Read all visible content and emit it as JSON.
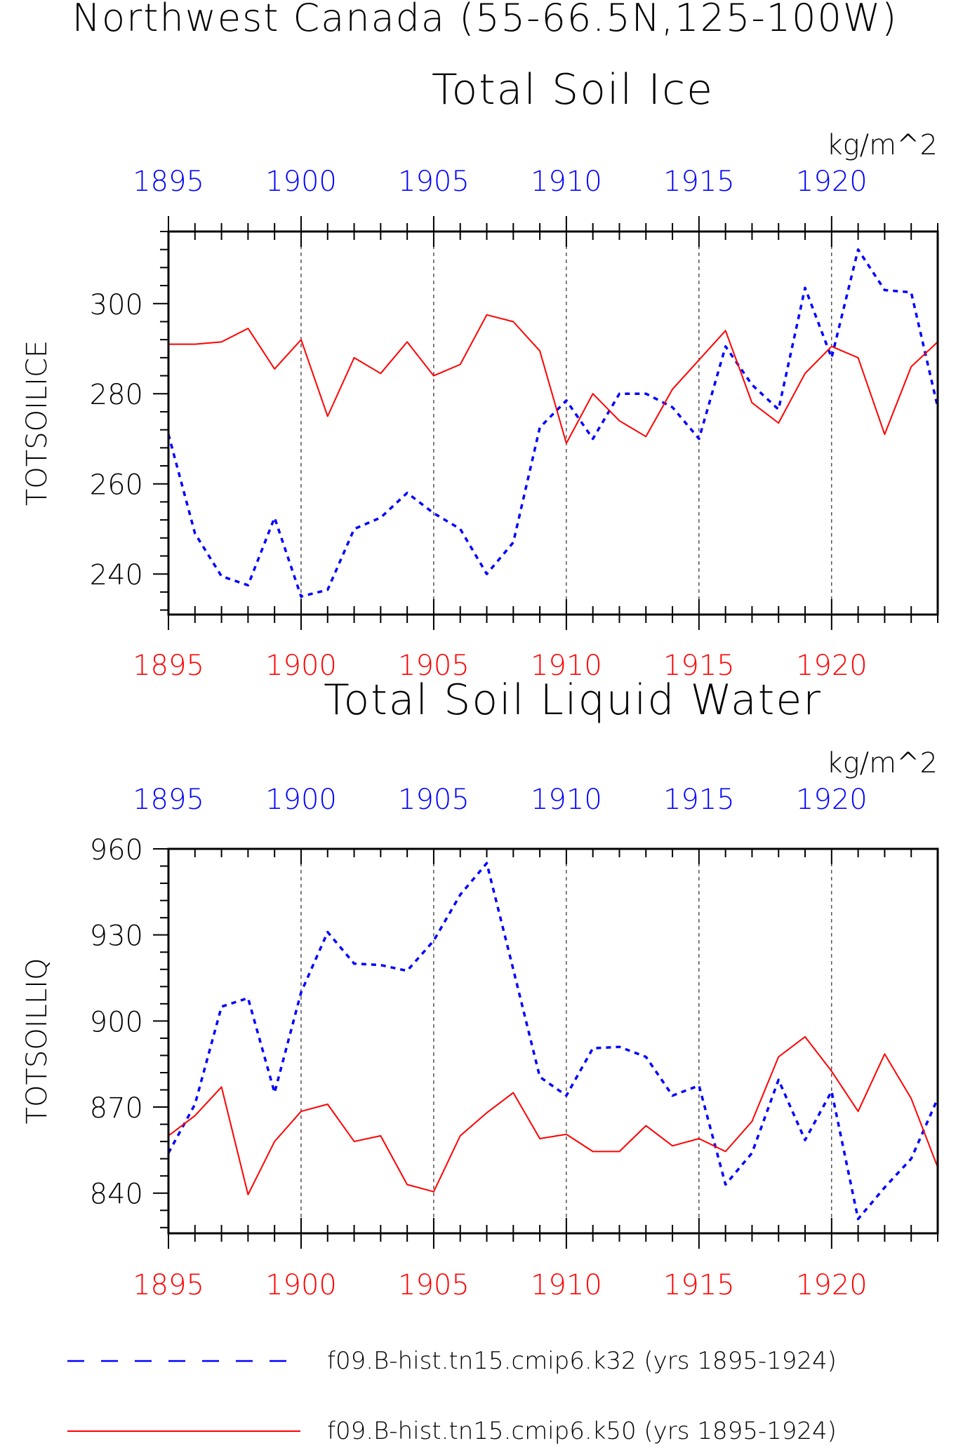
{
  "header": {
    "title": "Northwest Canada (55-66.5N,125-100W)"
  },
  "colors": {
    "k32": "#0000ff",
    "k50": "#ff0000",
    "axis": "#000000"
  },
  "chart_data": [
    {
      "type": "line",
      "title": "Total Soil Ice",
      "ylabel": "TOTSOILICE",
      "units": "kg/m^2",
      "xlim": [
        1895,
        1924
      ],
      "ylim": [
        231,
        316
      ],
      "yticks": [
        240,
        260,
        280,
        300
      ],
      "xticks": [
        1895,
        1900,
        1905,
        1910,
        1915,
        1920
      ],
      "x": [
        1895,
        1896,
        1897,
        1898,
        1899,
        1900,
        1901,
        1902,
        1903,
        1904,
        1905,
        1906,
        1907,
        1908,
        1909,
        1910,
        1911,
        1912,
        1913,
        1914,
        1915,
        1916,
        1917,
        1918,
        1919,
        1920,
        1921,
        1922,
        1923,
        1924
      ],
      "series": [
        {
          "name": "f09.B-hist.tn15.cmip6.k32 (yrs 1895-1924)",
          "style": "dashed",
          "color": "#0000ff",
          "values": [
            271,
            249,
            239.5,
            237.5,
            252.5,
            235,
            236.5,
            250,
            252.5,
            258,
            253.5,
            250,
            240,
            247,
            272.5,
            278.5,
            270,
            280,
            280,
            277,
            270,
            290.5,
            282,
            276.5,
            303.5,
            288,
            312,
            303,
            302.5,
            277
          ]
        },
        {
          "name": "f09.B-hist.tn15.cmip6.k50 (yrs 1895-1924)",
          "style": "solid",
          "color": "#ff0000",
          "values": [
            291,
            291,
            291.5,
            294.5,
            285.5,
            292,
            275,
            288,
            284.5,
            291.5,
            284,
            286.5,
            297.5,
            296,
            289.5,
            269,
            280,
            274,
            270.5,
            281,
            287.5,
            294,
            278,
            273.5,
            284.5,
            290.5,
            288,
            271,
            286,
            291.5
          ]
        }
      ]
    },
    {
      "type": "line",
      "title": "Total Soil Liquid Water",
      "ylabel": "TOTSOILLIQ",
      "units": "kg/m^2",
      "xlim": [
        1895,
        1924
      ],
      "ylim": [
        826,
        960
      ],
      "yticks": [
        840,
        870,
        900,
        930,
        960
      ],
      "xticks": [
        1895,
        1900,
        1905,
        1910,
        1915,
        1920
      ],
      "x": [
        1895,
        1896,
        1897,
        1898,
        1899,
        1900,
        1901,
        1902,
        1903,
        1904,
        1905,
        1906,
        1907,
        1908,
        1909,
        1910,
        1911,
        1912,
        1913,
        1914,
        1915,
        1916,
        1917,
        1918,
        1919,
        1920,
        1921,
        1922,
        1923,
        1924
      ],
      "series": [
        {
          "name": "f09.B-hist.tn15.cmip6.k32 (yrs 1895-1924)",
          "style": "dashed",
          "color": "#0000ff",
          "values": [
            854,
            871,
            905,
            908,
            875,
            910,
            931,
            920,
            919.5,
            917.5,
            928,
            944,
            955,
            918,
            880.5,
            874,
            890.5,
            891,
            887.5,
            874,
            877.5,
            843,
            854,
            879.5,
            858.5,
            875.5,
            831,
            842,
            852,
            873
          ]
        },
        {
          "name": "f09.B-hist.tn15.cmip6.k50 (yrs 1895-1924)",
          "style": "solid",
          "color": "#ff0000",
          "values": [
            860,
            867,
            877,
            839.5,
            858,
            868.5,
            871,
            858,
            860,
            843,
            840.5,
            860,
            868,
            875,
            859,
            860.5,
            854.5,
            854.5,
            863.5,
            856.5,
            859,
            854.5,
            865,
            887.5,
            894.5,
            882.5,
            868.5,
            888.5,
            873,
            849
          ]
        }
      ]
    }
  ],
  "legend": {
    "items": [
      {
        "label": "f09.B-hist.tn15.cmip6.k32 (yrs 1895-1924)",
        "style": "dashed",
        "color": "#0000ff"
      },
      {
        "label": "f09.B-hist.tn15.cmip6.k50 (yrs 1895-1924)",
        "style": "solid",
        "color": "#ff0000"
      }
    ]
  }
}
